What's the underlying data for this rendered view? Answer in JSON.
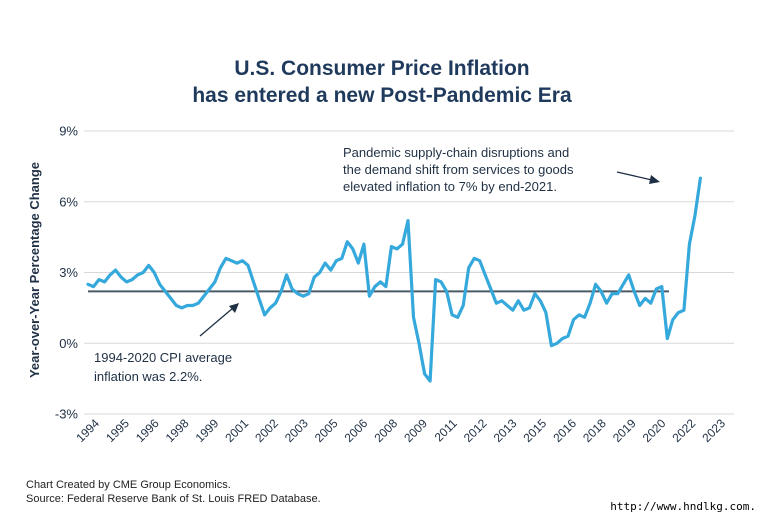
{
  "title_line1": "U.S. Consumer Price Inflation",
  "title_line2": "has entered a new Post-Pandemic Era",
  "source_line1": "Chart Created by CME Group Economics.",
  "source_line2": "Source:  Federal Reserve Bank of St. Louis FRED Database.",
  "watermark": "http://www.hndlkg.com.",
  "colors": {
    "line": "#35a8dc",
    "average": "#4a5a66",
    "grid": "#d8d8d8",
    "title": "#1f3a5c"
  },
  "annotation_top": [
    "Pandemic supply-chain disruptions and",
    "the demand shift from services to goods",
    "elevated inflation to 7% by end-2021."
  ],
  "annotation_bottom": [
    "1994-2020 CPI average",
    "inflation was 2.2%."
  ],
  "chart_data": {
    "type": "line",
    "title": "U.S. Consumer Price Inflation has entered a new Post-Pandemic Era",
    "ylabel": "Year-over-Year Percentage Change",
    "xlabel": "",
    "ylim": [
      -3,
      9
    ],
    "yticks": [
      -3,
      0,
      3,
      6,
      9
    ],
    "ytick_labels": [
      "-3%",
      "0%",
      "3%",
      "6%",
      "9%"
    ],
    "xlim": [
      1994,
      2023
    ],
    "xtick_labels": [
      "1994",
      "1995",
      "1996",
      "1998",
      "1999",
      "2001",
      "2002",
      "2003",
      "2005",
      "2006",
      "2008",
      "2009",
      "2011",
      "2012",
      "2013",
      "2015",
      "2016",
      "2018",
      "2019",
      "2020",
      "2022",
      "2023"
    ],
    "grid": true,
    "average": 2.2,
    "series": [
      {
        "x": [
          1994.0,
          1994.25,
          1994.5,
          1994.75,
          1995.0,
          1995.25,
          1995.5,
          1995.75,
          1996.0,
          1996.25,
          1996.5,
          1996.75,
          1997.0,
          1997.25,
          1997.5,
          1997.75,
          1998.0,
          1998.25,
          1998.5,
          1998.75,
          1999.0,
          1999.25,
          1999.5,
          1999.75,
          2000.0,
          2000.25,
          2000.5,
          2000.75,
          2001.0,
          2001.25,
          2001.5,
          2001.75,
          2002.0,
          2002.25,
          2002.5,
          2002.75,
          2003.0,
          2003.25,
          2003.5,
          2003.75,
          2004.0,
          2004.25,
          2004.5,
          2004.75,
          2005.0,
          2005.25,
          2005.5,
          2005.75,
          2006.0,
          2006.25,
          2006.5,
          2006.75,
          2007.0,
          2007.25,
          2007.5,
          2007.75,
          2008.0,
          2008.25,
          2008.5,
          2008.75,
          2009.0,
          2009.25,
          2009.5,
          2009.75,
          2010.0,
          2010.25,
          2010.5,
          2010.75,
          2011.0,
          2011.25,
          2011.5,
          2011.75,
          2012.0,
          2012.25,
          2012.5,
          2012.75,
          2013.0,
          2013.25,
          2013.5,
          2013.75,
          2014.0,
          2014.25,
          2014.5,
          2014.75,
          2015.0,
          2015.25,
          2015.5,
          2015.75,
          2016.0,
          2016.25,
          2016.5,
          2016.75,
          2017.0,
          2017.25,
          2017.5,
          2017.75,
          2018.0,
          2018.25,
          2018.5,
          2018.75,
          2019.0,
          2019.25,
          2019.5,
          2019.75,
          2020.0,
          2020.25,
          2020.5,
          2020.75,
          2021.0,
          2021.25,
          2021.5,
          2021.75
        ],
        "values": [
          2.5,
          2.4,
          2.7,
          2.6,
          2.9,
          3.1,
          2.8,
          2.6,
          2.7,
          2.9,
          3.0,
          3.3,
          3.0,
          2.5,
          2.2,
          1.9,
          1.6,
          1.5,
          1.6,
          1.6,
          1.7,
          2.0,
          2.3,
          2.6,
          3.2,
          3.6,
          3.5,
          3.4,
          3.5,
          3.3,
          2.6,
          1.9,
          1.2,
          1.5,
          1.7,
          2.2,
          2.9,
          2.3,
          2.1,
          2.0,
          2.1,
          2.8,
          3.0,
          3.4,
          3.1,
          3.5,
          3.6,
          4.3,
          4.0,
          3.4,
          4.2,
          2.0,
          2.4,
          2.6,
          2.4,
          4.1,
          4.0,
          4.2,
          5.2,
          1.1,
          0.0,
          -1.3,
          -1.6,
          2.7,
          2.6,
          2.2,
          1.2,
          1.1,
          1.6,
          3.2,
          3.6,
          3.5,
          2.9,
          2.3,
          1.7,
          1.8,
          1.6,
          1.4,
          1.8,
          1.4,
          1.5,
          2.1,
          1.8,
          1.3,
          -0.1,
          0.0,
          0.2,
          0.3,
          1.0,
          1.2,
          1.1,
          1.7,
          2.5,
          2.2,
          1.7,
          2.1,
          2.1,
          2.5,
          2.9,
          2.2,
          1.6,
          1.9,
          1.7,
          2.3,
          2.4,
          0.2,
          1.0,
          1.3,
          1.4,
          4.2,
          5.4,
          7.0
        ]
      }
    ]
  }
}
